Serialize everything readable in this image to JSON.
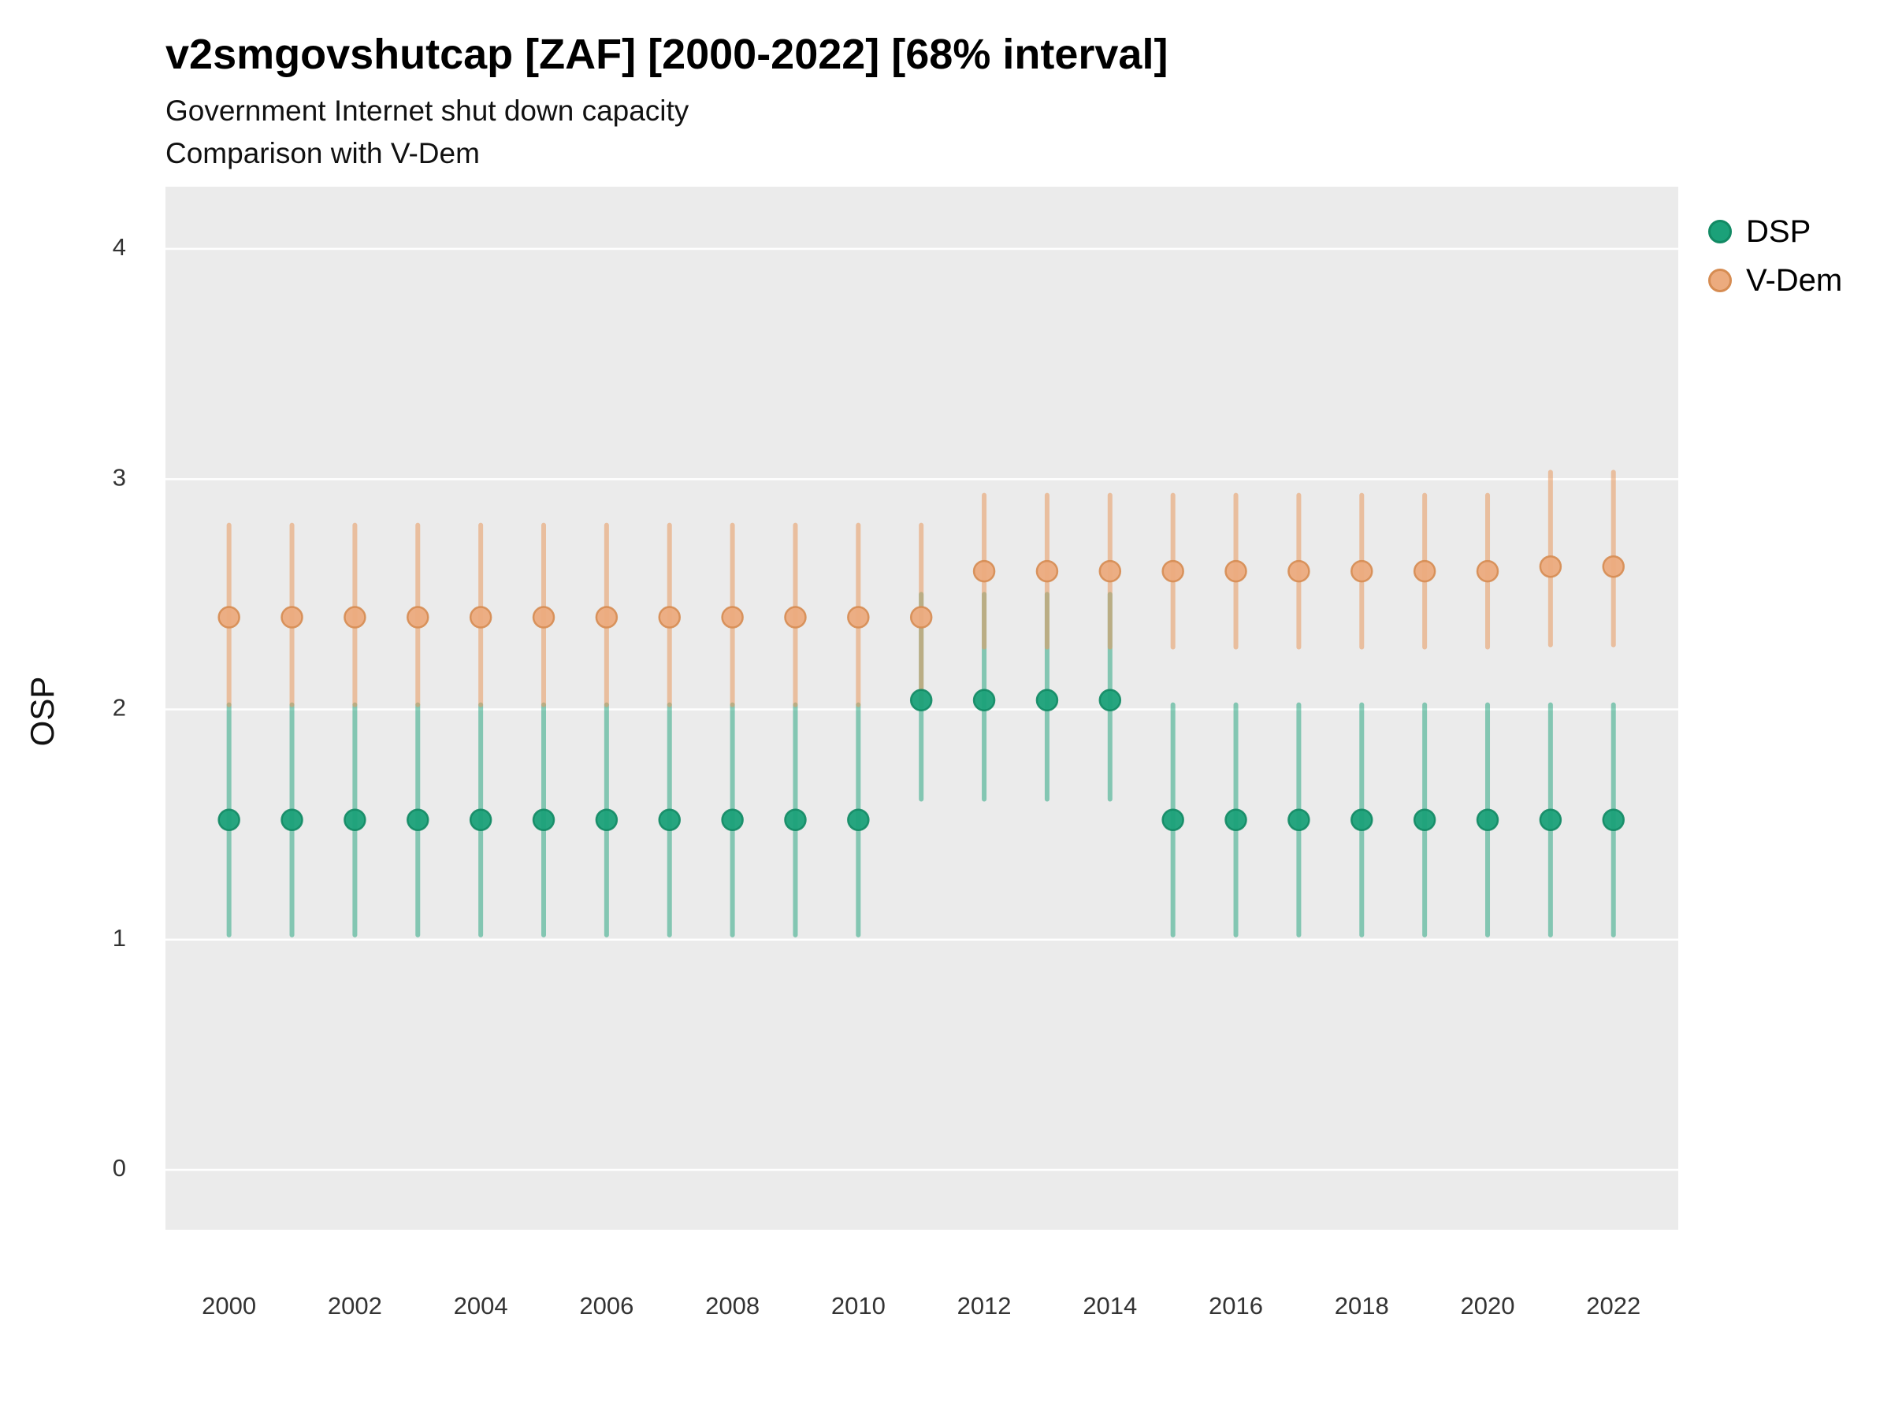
{
  "chart_data": {
    "type": "pointrange",
    "title": "v2smgovshutcap [ZAF] [2000-2022] [68% interval]",
    "subtitle1": "Government Internet shut down capacity",
    "subtitle2": "Comparison with V-Dem",
    "ylabel": "OSP",
    "xlabel": "",
    "xlim": [
      1998.99,
      2023.03
    ],
    "ylim": [
      -0.26,
      4.27
    ],
    "yticks": [
      0,
      1,
      2,
      3,
      4
    ],
    "xticks": [
      2000,
      2002,
      2004,
      2006,
      2008,
      2010,
      2012,
      2014,
      2016,
      2018,
      2020,
      2022
    ],
    "grid": "horizontal-major-only",
    "panel_background": "#ebebeb",
    "gridline_color": "#ffffff",
    "tick_label_color": "#333333",
    "legend_position": "right",
    "legend": [
      {
        "name": "DSP",
        "color": "#1ba179",
        "stroke": "#128a64"
      },
      {
        "name": "V-Dem",
        "color": "#ecab7e",
        "stroke": "#d68c52"
      }
    ],
    "series": [
      {
        "name": "DSP",
        "point_color": "#1ba179",
        "point_stroke": "#128a64",
        "line_color": "#1ba179",
        "line_opacity": 0.5,
        "points": [
          {
            "x": 2000,
            "lo": 1.02,
            "y": 1.52,
            "hi": 2.02
          },
          {
            "x": 2001,
            "lo": 1.02,
            "y": 1.52,
            "hi": 2.02
          },
          {
            "x": 2002,
            "lo": 1.02,
            "y": 1.52,
            "hi": 2.02
          },
          {
            "x": 2003,
            "lo": 1.02,
            "y": 1.52,
            "hi": 2.02
          },
          {
            "x": 2004,
            "lo": 1.02,
            "y": 1.52,
            "hi": 2.02
          },
          {
            "x": 2005,
            "lo": 1.02,
            "y": 1.52,
            "hi": 2.02
          },
          {
            "x": 2006,
            "lo": 1.02,
            "y": 1.52,
            "hi": 2.02
          },
          {
            "x": 2007,
            "lo": 1.02,
            "y": 1.52,
            "hi": 2.02
          },
          {
            "x": 2008,
            "lo": 1.02,
            "y": 1.52,
            "hi": 2.02
          },
          {
            "x": 2009,
            "lo": 1.02,
            "y": 1.52,
            "hi": 2.02
          },
          {
            "x": 2010,
            "lo": 1.02,
            "y": 1.52,
            "hi": 2.02
          },
          {
            "x": 2011,
            "lo": 1.61,
            "y": 2.04,
            "hi": 2.5
          },
          {
            "x": 2012,
            "lo": 1.61,
            "y": 2.04,
            "hi": 2.5
          },
          {
            "x": 2013,
            "lo": 1.61,
            "y": 2.04,
            "hi": 2.5
          },
          {
            "x": 2014,
            "lo": 1.61,
            "y": 2.04,
            "hi": 2.5
          },
          {
            "x": 2015,
            "lo": 1.02,
            "y": 1.52,
            "hi": 2.02
          },
          {
            "x": 2016,
            "lo": 1.02,
            "y": 1.52,
            "hi": 2.02
          },
          {
            "x": 2017,
            "lo": 1.02,
            "y": 1.52,
            "hi": 2.02
          },
          {
            "x": 2018,
            "lo": 1.02,
            "y": 1.52,
            "hi": 2.02
          },
          {
            "x": 2019,
            "lo": 1.02,
            "y": 1.52,
            "hi": 2.02
          },
          {
            "x": 2020,
            "lo": 1.02,
            "y": 1.52,
            "hi": 2.02
          },
          {
            "x": 2021,
            "lo": 1.02,
            "y": 1.52,
            "hi": 2.02
          },
          {
            "x": 2022,
            "lo": 1.02,
            "y": 1.52,
            "hi": 2.02
          }
        ]
      },
      {
        "name": "V-Dem",
        "point_color": "#ecab7e",
        "point_stroke": "#d68c52",
        "line_color": "#e8995f",
        "line_opacity": 0.55,
        "points": [
          {
            "x": 2000,
            "lo": 2.02,
            "y": 2.4,
            "hi": 2.8
          },
          {
            "x": 2001,
            "lo": 2.02,
            "y": 2.4,
            "hi": 2.8
          },
          {
            "x": 2002,
            "lo": 2.02,
            "y": 2.4,
            "hi": 2.8
          },
          {
            "x": 2003,
            "lo": 2.02,
            "y": 2.4,
            "hi": 2.8
          },
          {
            "x": 2004,
            "lo": 2.02,
            "y": 2.4,
            "hi": 2.8
          },
          {
            "x": 2005,
            "lo": 2.02,
            "y": 2.4,
            "hi": 2.8
          },
          {
            "x": 2006,
            "lo": 2.02,
            "y": 2.4,
            "hi": 2.8
          },
          {
            "x": 2007,
            "lo": 2.02,
            "y": 2.4,
            "hi": 2.8
          },
          {
            "x": 2008,
            "lo": 2.02,
            "y": 2.4,
            "hi": 2.8
          },
          {
            "x": 2009,
            "lo": 2.02,
            "y": 2.4,
            "hi": 2.8
          },
          {
            "x": 2010,
            "lo": 2.02,
            "y": 2.4,
            "hi": 2.8
          },
          {
            "x": 2011,
            "lo": 2.02,
            "y": 2.4,
            "hi": 2.8
          },
          {
            "x": 2012,
            "lo": 2.27,
            "y": 2.6,
            "hi": 2.93
          },
          {
            "x": 2013,
            "lo": 2.27,
            "y": 2.6,
            "hi": 2.93
          },
          {
            "x": 2014,
            "lo": 2.27,
            "y": 2.6,
            "hi": 2.93
          },
          {
            "x": 2015,
            "lo": 2.27,
            "y": 2.6,
            "hi": 2.93
          },
          {
            "x": 2016,
            "lo": 2.27,
            "y": 2.6,
            "hi": 2.93
          },
          {
            "x": 2017,
            "lo": 2.27,
            "y": 2.6,
            "hi": 2.93
          },
          {
            "x": 2018,
            "lo": 2.27,
            "y": 2.6,
            "hi": 2.93
          },
          {
            "x": 2019,
            "lo": 2.27,
            "y": 2.6,
            "hi": 2.93
          },
          {
            "x": 2020,
            "lo": 2.27,
            "y": 2.6,
            "hi": 2.93
          },
          {
            "x": 2021,
            "lo": 2.28,
            "y": 2.62,
            "hi": 3.03
          },
          {
            "x": 2022,
            "lo": 2.28,
            "y": 2.62,
            "hi": 3.03
          }
        ]
      }
    ]
  }
}
